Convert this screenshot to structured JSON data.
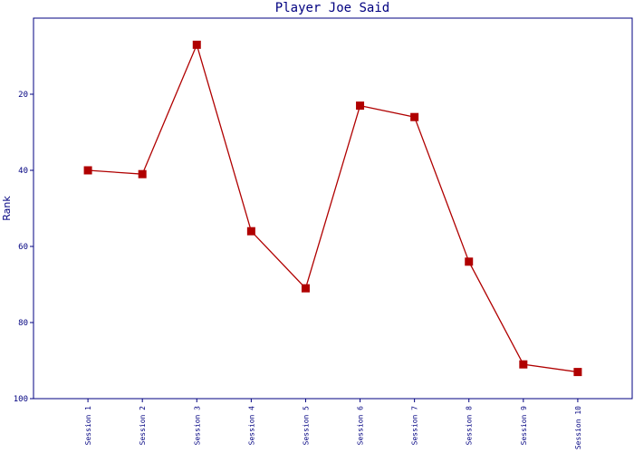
{
  "chart_data": {
    "type": "line",
    "title": "Player Joe Said",
    "y_label": "Rank",
    "categories": [
      "Session 1",
      "Session 2",
      "Session 3",
      "Session 4",
      "Session 5",
      "Session 6",
      "Session 7",
      "Session 8",
      "Session 9",
      "Session 10"
    ],
    "values": [
      40,
      41,
      7,
      56,
      71,
      23,
      26,
      64,
      91,
      93
    ],
    "color": "#b00000",
    "ylim": [
      100,
      0
    ],
    "yticks": [
      20,
      40,
      60,
      80,
      100
    ],
    "grid": false
  }
}
